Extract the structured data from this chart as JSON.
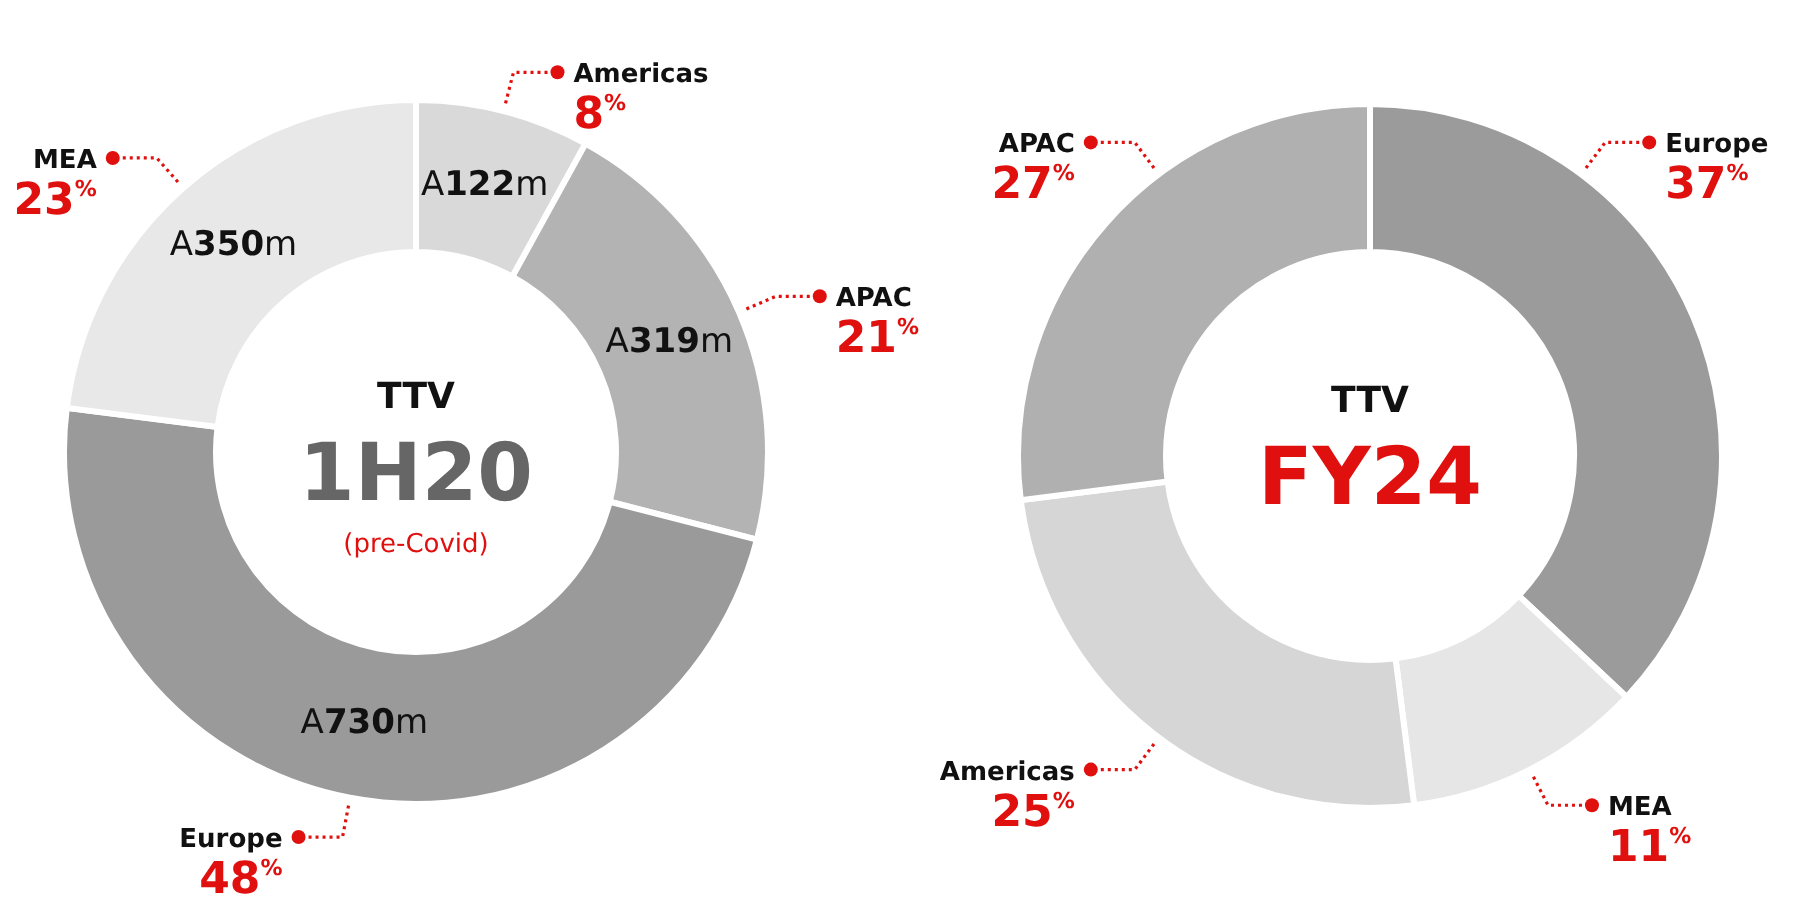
{
  "chart_data": [
    {
      "type": "donut",
      "title": "TTV",
      "subtitle": "1H20",
      "categories": [
        "Americas",
        "APAC",
        "Europe",
        "MEA"
      ],
      "values": [
        8,
        21,
        48,
        23
      ],
      "colors": [
        "#d9d9d9",
        "#b3b3b3",
        "#9a9a9a",
        "#e8e8e8"
      ],
      "value_labels": [
        "8$^{%}$",
        "21$^{%}$",
        "48$^{%}$",
        "23$^{%}$"
      ],
      "annotations": [
        "(pre-Covid)",
        {
          "text": "A122m",
          "x": "Americas"
        },
        {
          "text": "A319m",
          "x": "APAC"
        },
        {
          "text": "A730m",
          "x": "Europe"
        },
        {
          "text": "A350m",
          "x": "MEA"
        }
      ]
    },
    {
      "type": "donut",
      "title": "TTV",
      "subtitle": "FY24",
      "categories": [
        "Europe",
        "MEA",
        "Americas",
        "APAC"
      ],
      "values": [
        37,
        11,
        25,
        27
      ],
      "colors": [
        "#9b9b9b",
        "#e6e6e6",
        "#d6d6d6",
        "#b0b0b0"
      ],
      "value_labels": [
        "37$^{%}$",
        "11$^{%}$",
        "25$^{%}$",
        "27$^{%}$"
      ]
    }
  ]
}
